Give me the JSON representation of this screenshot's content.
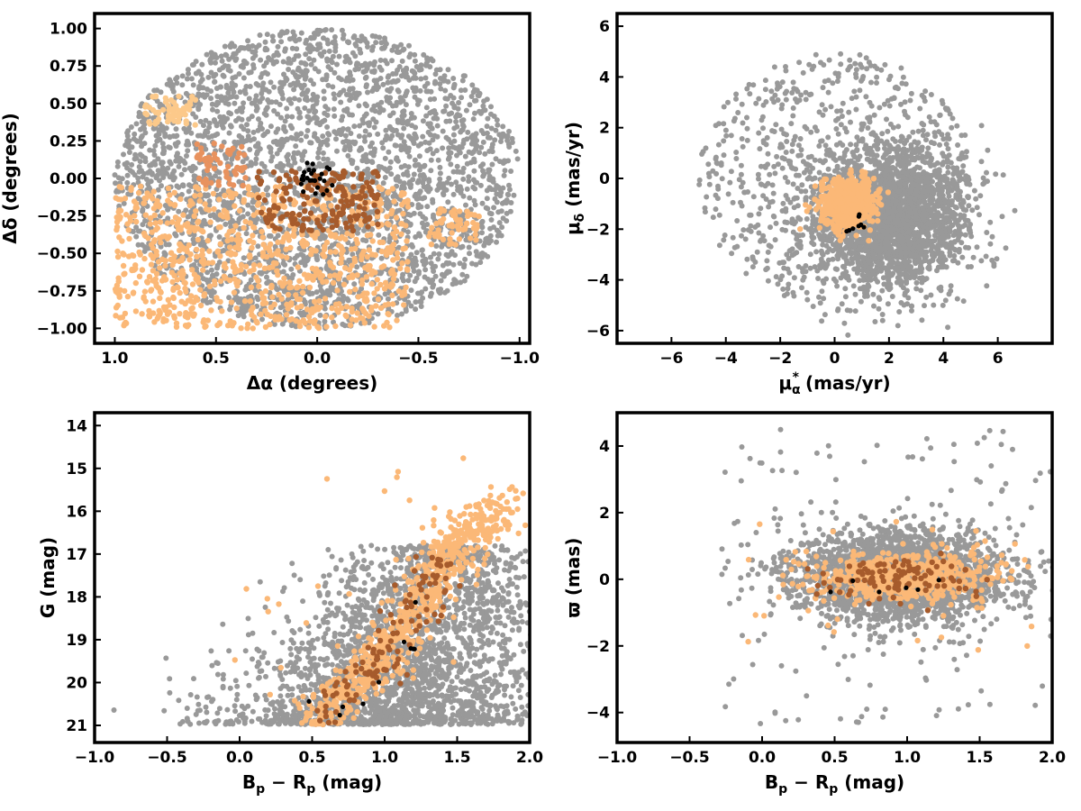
{
  "colors": {
    "field": "#999999",
    "group1": "#fbb877",
    "group2": "#fcc98a",
    "group3": "#e8925e",
    "group4": "#a65b2c",
    "cluster": "#000000",
    "frame": "#000000"
  },
  "chart_data": [
    {
      "type": "scatter",
      "id": "sky",
      "xlabel": "Δα (degrees)",
      "ylabel": "Δδ (degrees)",
      "xlim": [
        1.1,
        -1.05
      ],
      "ylim": [
        -1.1,
        1.1
      ],
      "x_inverted": true,
      "xticks": [
        "1.0",
        "0.5",
        "0.0",
        "−0.5",
        "−1.0"
      ],
      "xtick_values": [
        1.0,
        0.5,
        0.0,
        -0.5,
        -1.0
      ],
      "yticks": [
        "−1.00",
        "−0.75",
        "−0.50",
        "−0.25",
        "0.00",
        "0.25",
        "0.50",
        "0.75",
        "1.00"
      ],
      "ytick_values": [
        -1.0,
        -0.75,
        -0.5,
        -0.25,
        0.0,
        0.25,
        0.5,
        0.75,
        1.0
      ],
      "grid": false,
      "series": [
        {
          "color": "field",
          "distribution": "disk",
          "center": [
            0.0,
            0.0
          ],
          "radius": 1.0,
          "count": 3000
        },
        {
          "color": "group1",
          "distribution": "region",
          "x_range": [
            1.0,
            -0.45
          ],
          "y_range": [
            -1.0,
            -0.05
          ],
          "count": 900
        },
        {
          "color": "group1",
          "distribution": "region",
          "x_range": [
            -0.55,
            -0.8
          ],
          "y_range": [
            -0.45,
            -0.2
          ],
          "count": 60
        },
        {
          "color": "group2",
          "distribution": "region",
          "x_range": [
            0.85,
            0.6
          ],
          "y_range": [
            0.35,
            0.55
          ],
          "count": 60
        },
        {
          "color": "group3",
          "distribution": "region",
          "x_range": [
            0.6,
            0.35
          ],
          "y_range": [
            -0.05,
            0.25
          ],
          "count": 60
        },
        {
          "color": "group4",
          "distribution": "region",
          "x_range": [
            0.3,
            -0.3
          ],
          "y_range": [
            -0.35,
            0.05
          ],
          "count": 180
        },
        {
          "color": "cluster",
          "distribution": "region",
          "x_range": [
            0.08,
            -0.08
          ],
          "y_range": [
            -0.12,
            0.12
          ],
          "count": 25
        }
      ]
    },
    {
      "type": "scatter",
      "id": "proper-motion",
      "xlabel": "μ*α (mas/yr)",
      "xlabel_parts": [
        "μ",
        "α",
        "*",
        "  (mas/yr)"
      ],
      "ylabel": "μδ (mas/yr)",
      "ylabel_parts": [
        "μ",
        "δ",
        " (mas/yr)"
      ],
      "xlim": [
        -8,
        8
      ],
      "ylim": [
        -6.5,
        6.5
      ],
      "xticks": [
        "−6",
        "−4",
        "−2",
        "0",
        "2",
        "4",
        "6"
      ],
      "xtick_values": [
        -6,
        -4,
        -2,
        0,
        2,
        4,
        6
      ],
      "yticks": [
        "−6",
        "−4",
        "−2",
        "0",
        "2",
        "4",
        "6"
      ],
      "ytick_values": [
        -6,
        -4,
        -2,
        0,
        2,
        4,
        6
      ],
      "grid": false,
      "series": [
        {
          "color": "field",
          "distribution": "disk",
          "center": [
            0.0,
            0.0
          ],
          "radius": 5.0,
          "count": 700
        },
        {
          "color": "field",
          "distribution": "gauss",
          "center": [
            2.0,
            -1.5
          ],
          "sigma": [
            1.4,
            1.4
          ],
          "count": 2300
        },
        {
          "color": "group1",
          "distribution": "gauss",
          "center": [
            0.5,
            -1.0
          ],
          "sigma": [
            0.5,
            0.45
          ],
          "count": 700
        },
        {
          "color": "cluster",
          "distribution": "gauss",
          "center": [
            0.8,
            -1.8
          ],
          "sigma": [
            0.2,
            0.2
          ],
          "count": 8
        }
      ]
    },
    {
      "type": "scatter",
      "id": "cmd",
      "xlabel": "Bp − Rp (mag)",
      "xlabel_parts": [
        "B",
        "p",
        " − ",
        "R",
        "p",
        " (mag)"
      ],
      "ylabel": "G (mag)",
      "xlim": [
        -1.0,
        2.0
      ],
      "ylim": [
        21.4,
        13.7
      ],
      "y_inverted": true,
      "xticks": [
        "−1.0",
        "−0.5",
        "0.0",
        "0.5",
        "1.0",
        "1.5",
        "2.0"
      ],
      "xtick_values": [
        -1.0,
        -0.5,
        0.0,
        0.5,
        1.0,
        1.5,
        2.0
      ],
      "yticks": [
        "14",
        "15",
        "16",
        "17",
        "18",
        "19",
        "20",
        "21"
      ],
      "ytick_values": [
        14,
        15,
        16,
        17,
        18,
        19,
        20,
        21
      ],
      "grid": false,
      "series": [
        {
          "color": "field",
          "distribution": "cmd-field",
          "count": 2600
        },
        {
          "color": "group1",
          "distribution": "sequence",
          "points": [
            [
              0.5,
              20.9
            ],
            [
              0.8,
              20.0
            ],
            [
              1.0,
              19.3
            ],
            [
              1.2,
              18.4
            ],
            [
              1.35,
              17.4
            ],
            [
              1.55,
              16.6
            ],
            [
              1.85,
              15.8
            ]
          ],
          "spread": [
            0.1,
            0.25
          ],
          "count": 700
        },
        {
          "color": "group1",
          "distribution": "region",
          "x_range": [
            -0.3,
            1.9
          ],
          "y_range": [
            14.7,
            20.8
          ],
          "count": 25
        },
        {
          "color": "group4",
          "distribution": "sequence",
          "points": [
            [
              0.6,
              20.8
            ],
            [
              0.9,
              19.8
            ],
            [
              1.1,
              19.0
            ],
            [
              1.25,
              18.0
            ],
            [
              1.4,
              17.1
            ]
          ],
          "spread": [
            0.08,
            0.2
          ],
          "count": 110
        },
        {
          "color": "cluster",
          "distribution": "sequence",
          "points": [
            [
              0.2,
              20.5
            ],
            [
              0.9,
              20.5
            ],
            [
              1.1,
              19.3
            ],
            [
              1.2,
              18.5
            ],
            [
              1.35,
              17.6
            ]
          ],
          "spread": [
            0.05,
            0.15
          ],
          "count": 10
        }
      ]
    },
    {
      "type": "scatter",
      "id": "parallax",
      "xlabel": "Bp − Rp (mag)",
      "xlabel_parts": [
        "B",
        "p",
        " − ",
        "R",
        "p",
        " (mag)"
      ],
      "ylabel": "ϖ (mas)",
      "xlim": [
        -1.0,
        2.0
      ],
      "ylim": [
        -4.9,
        5.0
      ],
      "xticks": [
        "−1.0",
        "−0.5",
        "0.0",
        "0.5",
        "1.0",
        "1.5",
        "2.0"
      ],
      "xtick_values": [
        -1.0,
        -0.5,
        0.0,
        0.5,
        1.0,
        1.5,
        2.0
      ],
      "yticks": [
        "−4",
        "−2",
        "0",
        "2",
        "4"
      ],
      "ytick_values": [
        -4,
        -2,
        0,
        2,
        4
      ],
      "grid": false,
      "series": [
        {
          "color": "field",
          "distribution": "gauss",
          "center": [
            0.95,
            0.1
          ],
          "sigma": [
            0.35,
            0.65
          ],
          "count": 2600
        },
        {
          "color": "field",
          "distribution": "region",
          "x_range": [
            -0.3,
            2.0
          ],
          "y_range": [
            -4.4,
            4.6
          ],
          "count": 150
        },
        {
          "color": "group1",
          "distribution": "gauss",
          "center": [
            1.0,
            0.1
          ],
          "sigma": [
            0.3,
            0.35
          ],
          "count": 600
        },
        {
          "color": "group1",
          "distribution": "region",
          "x_range": [
            -0.25,
            1.9
          ],
          "y_range": [
            -2.4,
            1.9
          ],
          "count": 40
        },
        {
          "color": "group4",
          "distribution": "gauss",
          "center": [
            0.95,
            0.0
          ],
          "sigma": [
            0.25,
            0.3
          ],
          "count": 100
        },
        {
          "color": "cluster",
          "distribution": "gauss",
          "center": [
            0.8,
            -0.2
          ],
          "sigma": [
            0.25,
            0.25
          ],
          "count": 6
        }
      ]
    }
  ]
}
